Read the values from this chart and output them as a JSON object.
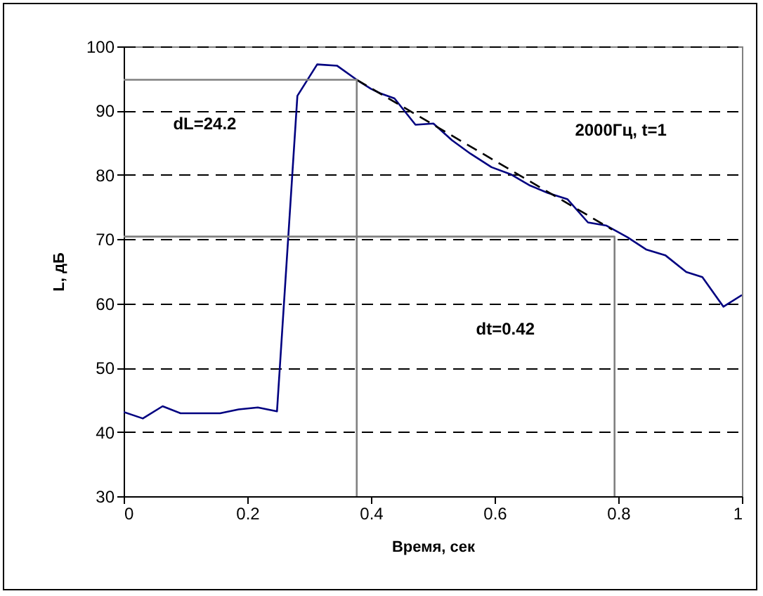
{
  "chart_data": {
    "type": "line",
    "xlabel": "Время, сек",
    "ylabel": "L, дБ",
    "xlim": [
      0,
      1
    ],
    "xticks": [
      0,
      0.2,
      0.4,
      0.6,
      0.8,
      1
    ],
    "ylim": [
      30,
      100
    ],
    "yticks": [
      30,
      40,
      50,
      60,
      70,
      80,
      90,
      100
    ],
    "grid": "y",
    "marker": "none",
    "annotations": [
      "dL=24.2",
      "2000Гц, t=1",
      "dt=0.42"
    ],
    "series": [
      {
        "color": "#000080",
        "line_style": "solid",
        "x": [
          0,
          0.031,
          0.063,
          0.092,
          0.156,
          0.186,
          0.217,
          0.248,
          0.281,
          0.313,
          0.345,
          0.377,
          0.4,
          0.415,
          0.438,
          0.472,
          0.501,
          0.531,
          0.561,
          0.595,
          0.626,
          0.656,
          0.686,
          0.718,
          0.751,
          0.781,
          0.815,
          0.845,
          0.876,
          0.91,
          0.936,
          0.97,
          1.0
        ],
        "values": [
          43.1,
          42.1,
          44,
          42.9,
          42.9,
          43.5,
          43.8,
          43.2,
          92.3,
          97.2,
          97.0,
          94.8,
          93.4,
          92.7,
          91.9,
          87.8,
          88.0,
          85.4,
          83.3,
          81.2,
          80.1,
          78.4,
          77.2,
          76.2,
          72.6,
          72.1,
          70.3,
          68.4,
          67.5,
          64.9,
          64.1,
          59.5,
          61.3
        ]
      },
      {
        "color": "#000000",
        "line_style": "dashed",
        "x": [
          0.377,
          0.79
        ],
        "values": [
          94.8,
          71.5
        ]
      },
      {
        "color": "#808080",
        "line_style": "solid",
        "x": [
          0,
          0.377,
          0.377
        ],
        "values": [
          94.8,
          94.8,
          30
        ]
      },
      {
        "color": "#808080",
        "line_style": "solid",
        "x": [
          0,
          0.794,
          0.794
        ],
        "values": [
          70.4,
          70.4,
          30
        ]
      }
    ]
  }
}
